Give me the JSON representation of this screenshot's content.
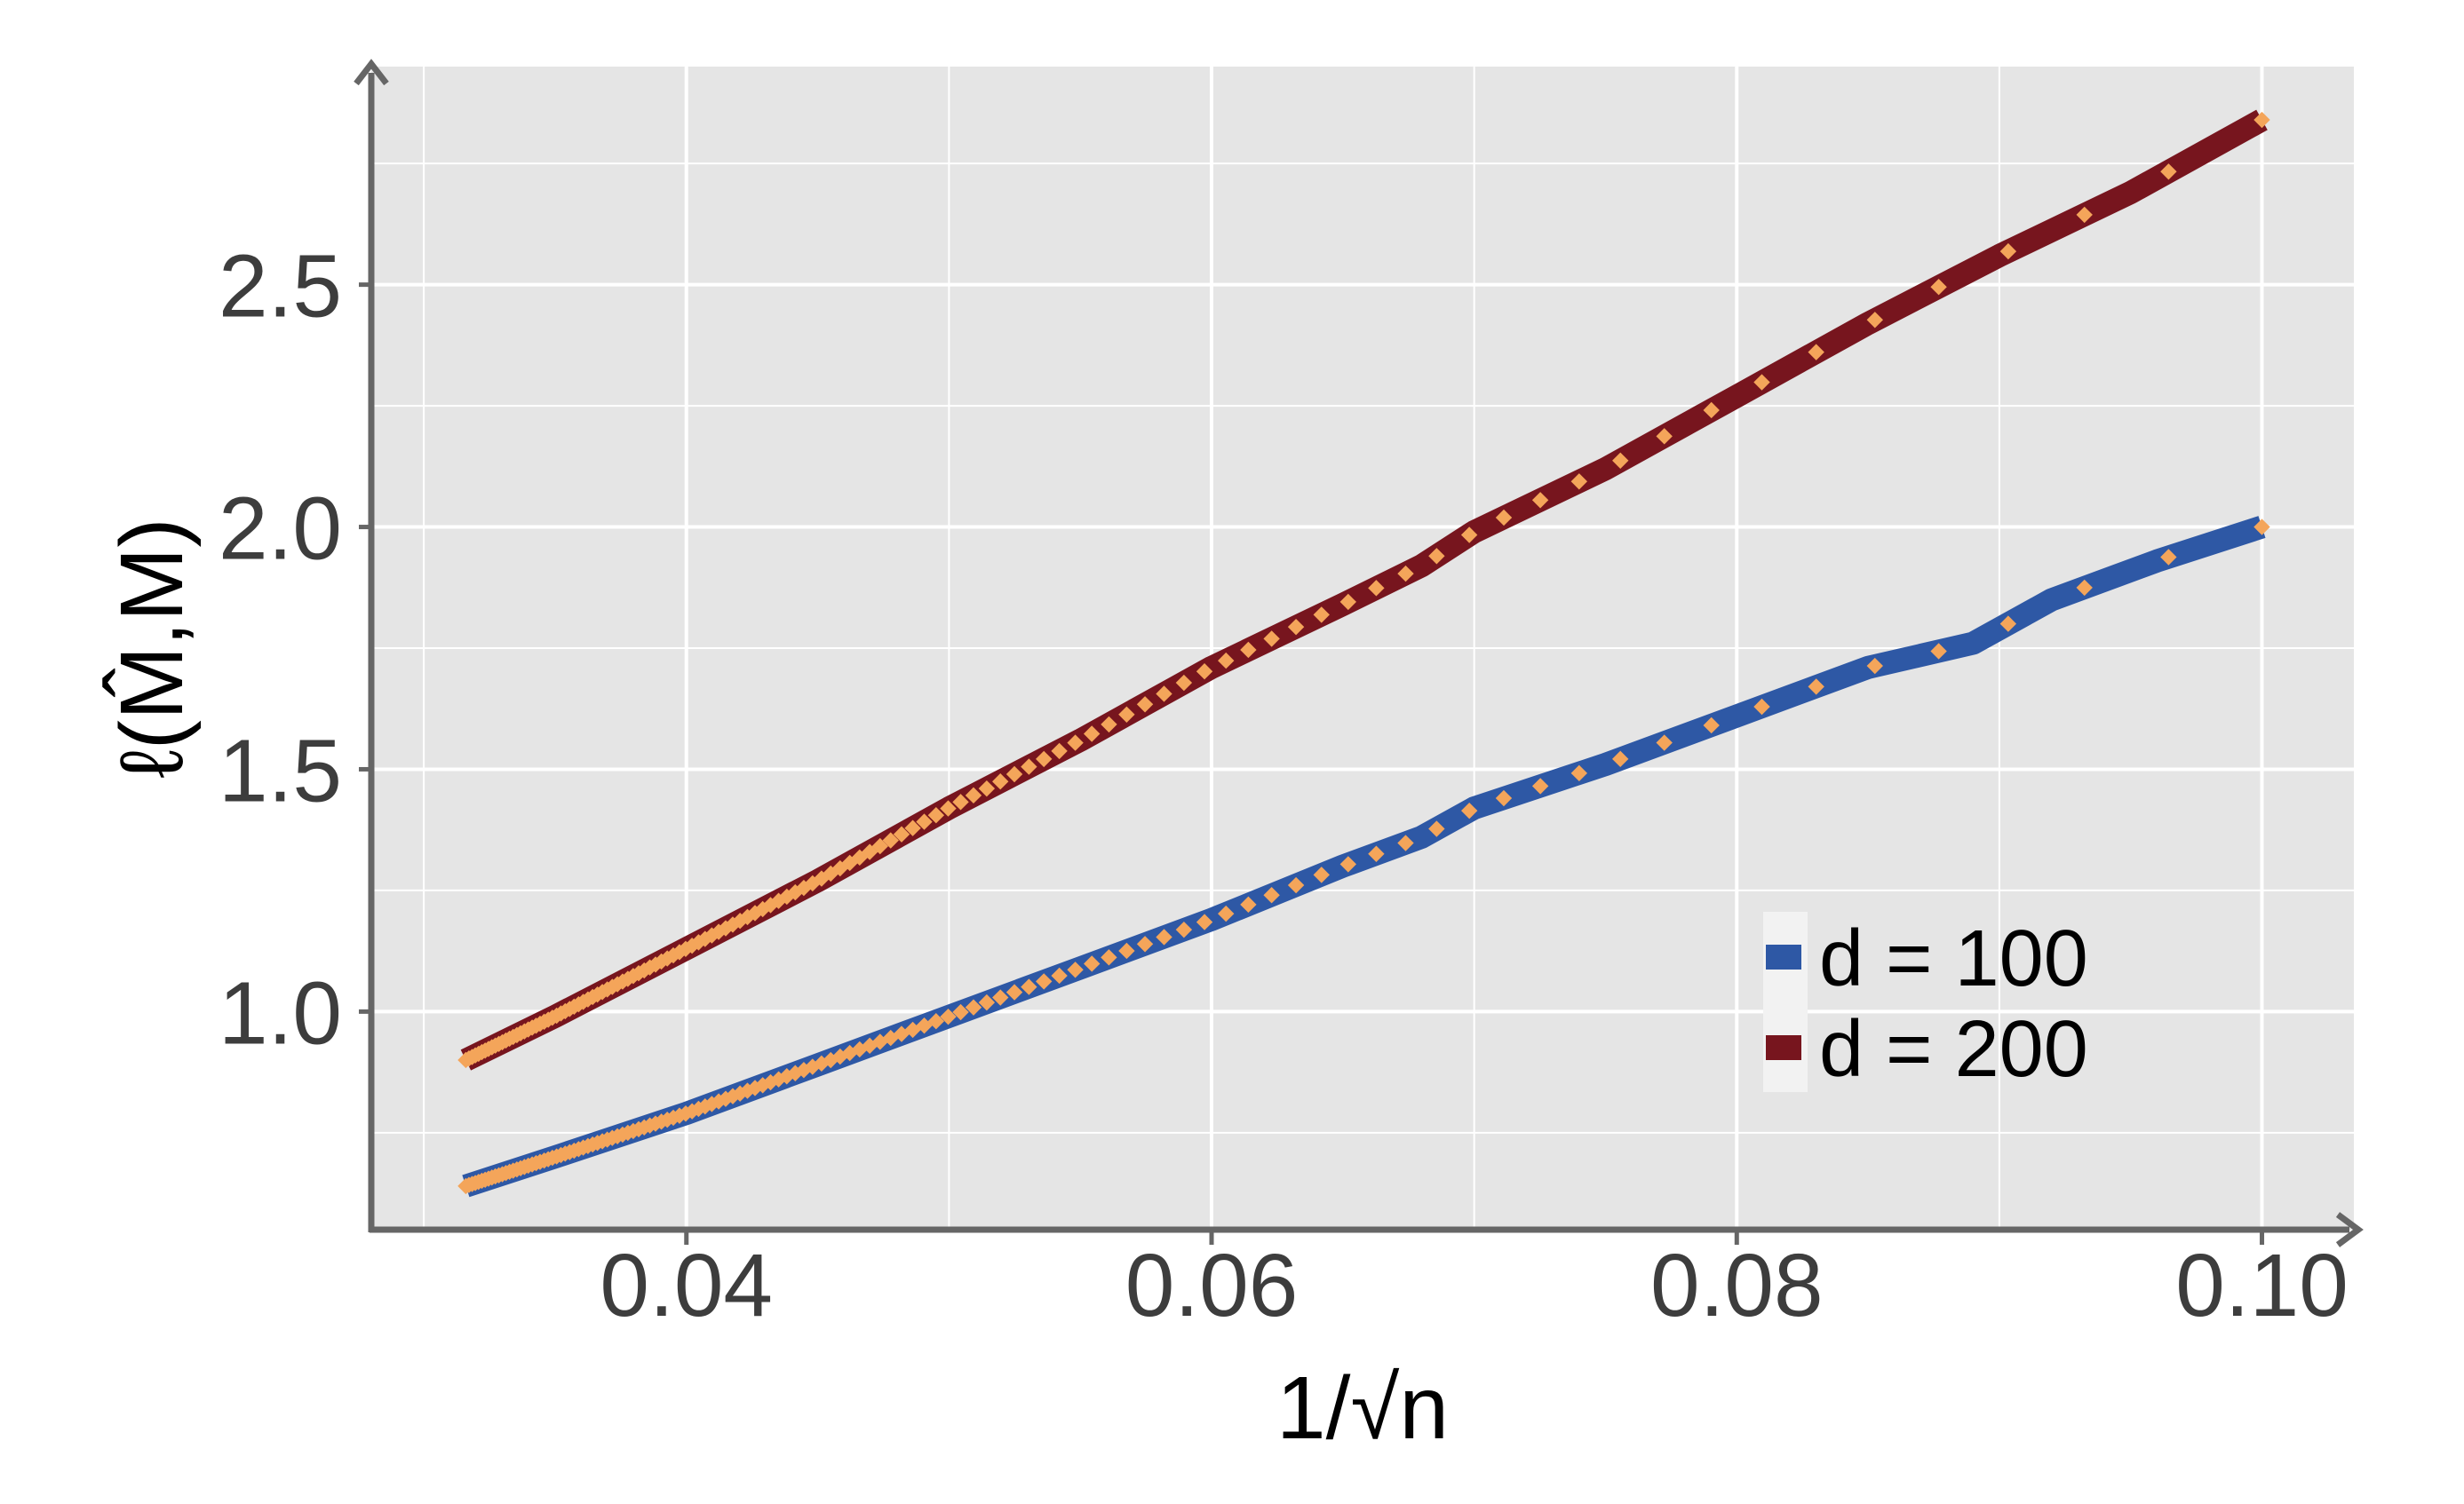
{
  "chart_data": {
    "type": "line",
    "xlabel": "1/√n",
    "ylabel": "ℓ(M̂,M)",
    "xlim": [
      0.028,
      0.1035
    ],
    "ylim": [
      0.55,
      2.95
    ],
    "x_ticks": [
      0.04,
      0.06,
      0.08,
      0.1
    ],
    "x_tick_labels": [
      "0.04",
      "0.06",
      "0.08",
      "0.10"
    ],
    "y_ticks": [
      1.0,
      1.5,
      2.0,
      2.5
    ],
    "y_tick_labels": [
      "1.0",
      "1.5",
      "2.0",
      "2.5"
    ],
    "grid": true,
    "legend_position": "bottom-right",
    "marker_color": "#f4a55a",
    "panel_color": "#e5e5e5",
    "series": [
      {
        "name": "d = 100",
        "color": "#2e58a5",
        "points": [
          [
            0.0316,
            0.64
          ],
          [
            0.035,
            0.7
          ],
          [
            0.04,
            0.79
          ],
          [
            0.045,
            0.89
          ],
          [
            0.05,
            0.99
          ],
          [
            0.055,
            1.09
          ],
          [
            0.06,
            1.19
          ],
          [
            0.065,
            1.3
          ],
          [
            0.068,
            1.36
          ],
          [
            0.07,
            1.42
          ],
          [
            0.075,
            1.51
          ],
          [
            0.08,
            1.61
          ],
          [
            0.085,
            1.71
          ],
          [
            0.089,
            1.76
          ],
          [
            0.092,
            1.85
          ],
          [
            0.096,
            1.93
          ],
          [
            0.1,
            2.0
          ]
        ]
      },
      {
        "name": "d = 200",
        "color": "#77151e",
        "points": [
          [
            0.0316,
            0.9
          ],
          [
            0.035,
            0.99
          ],
          [
            0.04,
            1.13
          ],
          [
            0.045,
            1.27
          ],
          [
            0.05,
            1.42
          ],
          [
            0.055,
            1.56
          ],
          [
            0.06,
            1.71
          ],
          [
            0.065,
            1.84
          ],
          [
            0.068,
            1.92
          ],
          [
            0.07,
            1.99
          ],
          [
            0.075,
            2.12
          ],
          [
            0.08,
            2.27
          ],
          [
            0.085,
            2.42
          ],
          [
            0.09,
            2.56
          ],
          [
            0.095,
            2.69
          ],
          [
            0.1,
            2.84
          ]
        ]
      }
    ]
  }
}
